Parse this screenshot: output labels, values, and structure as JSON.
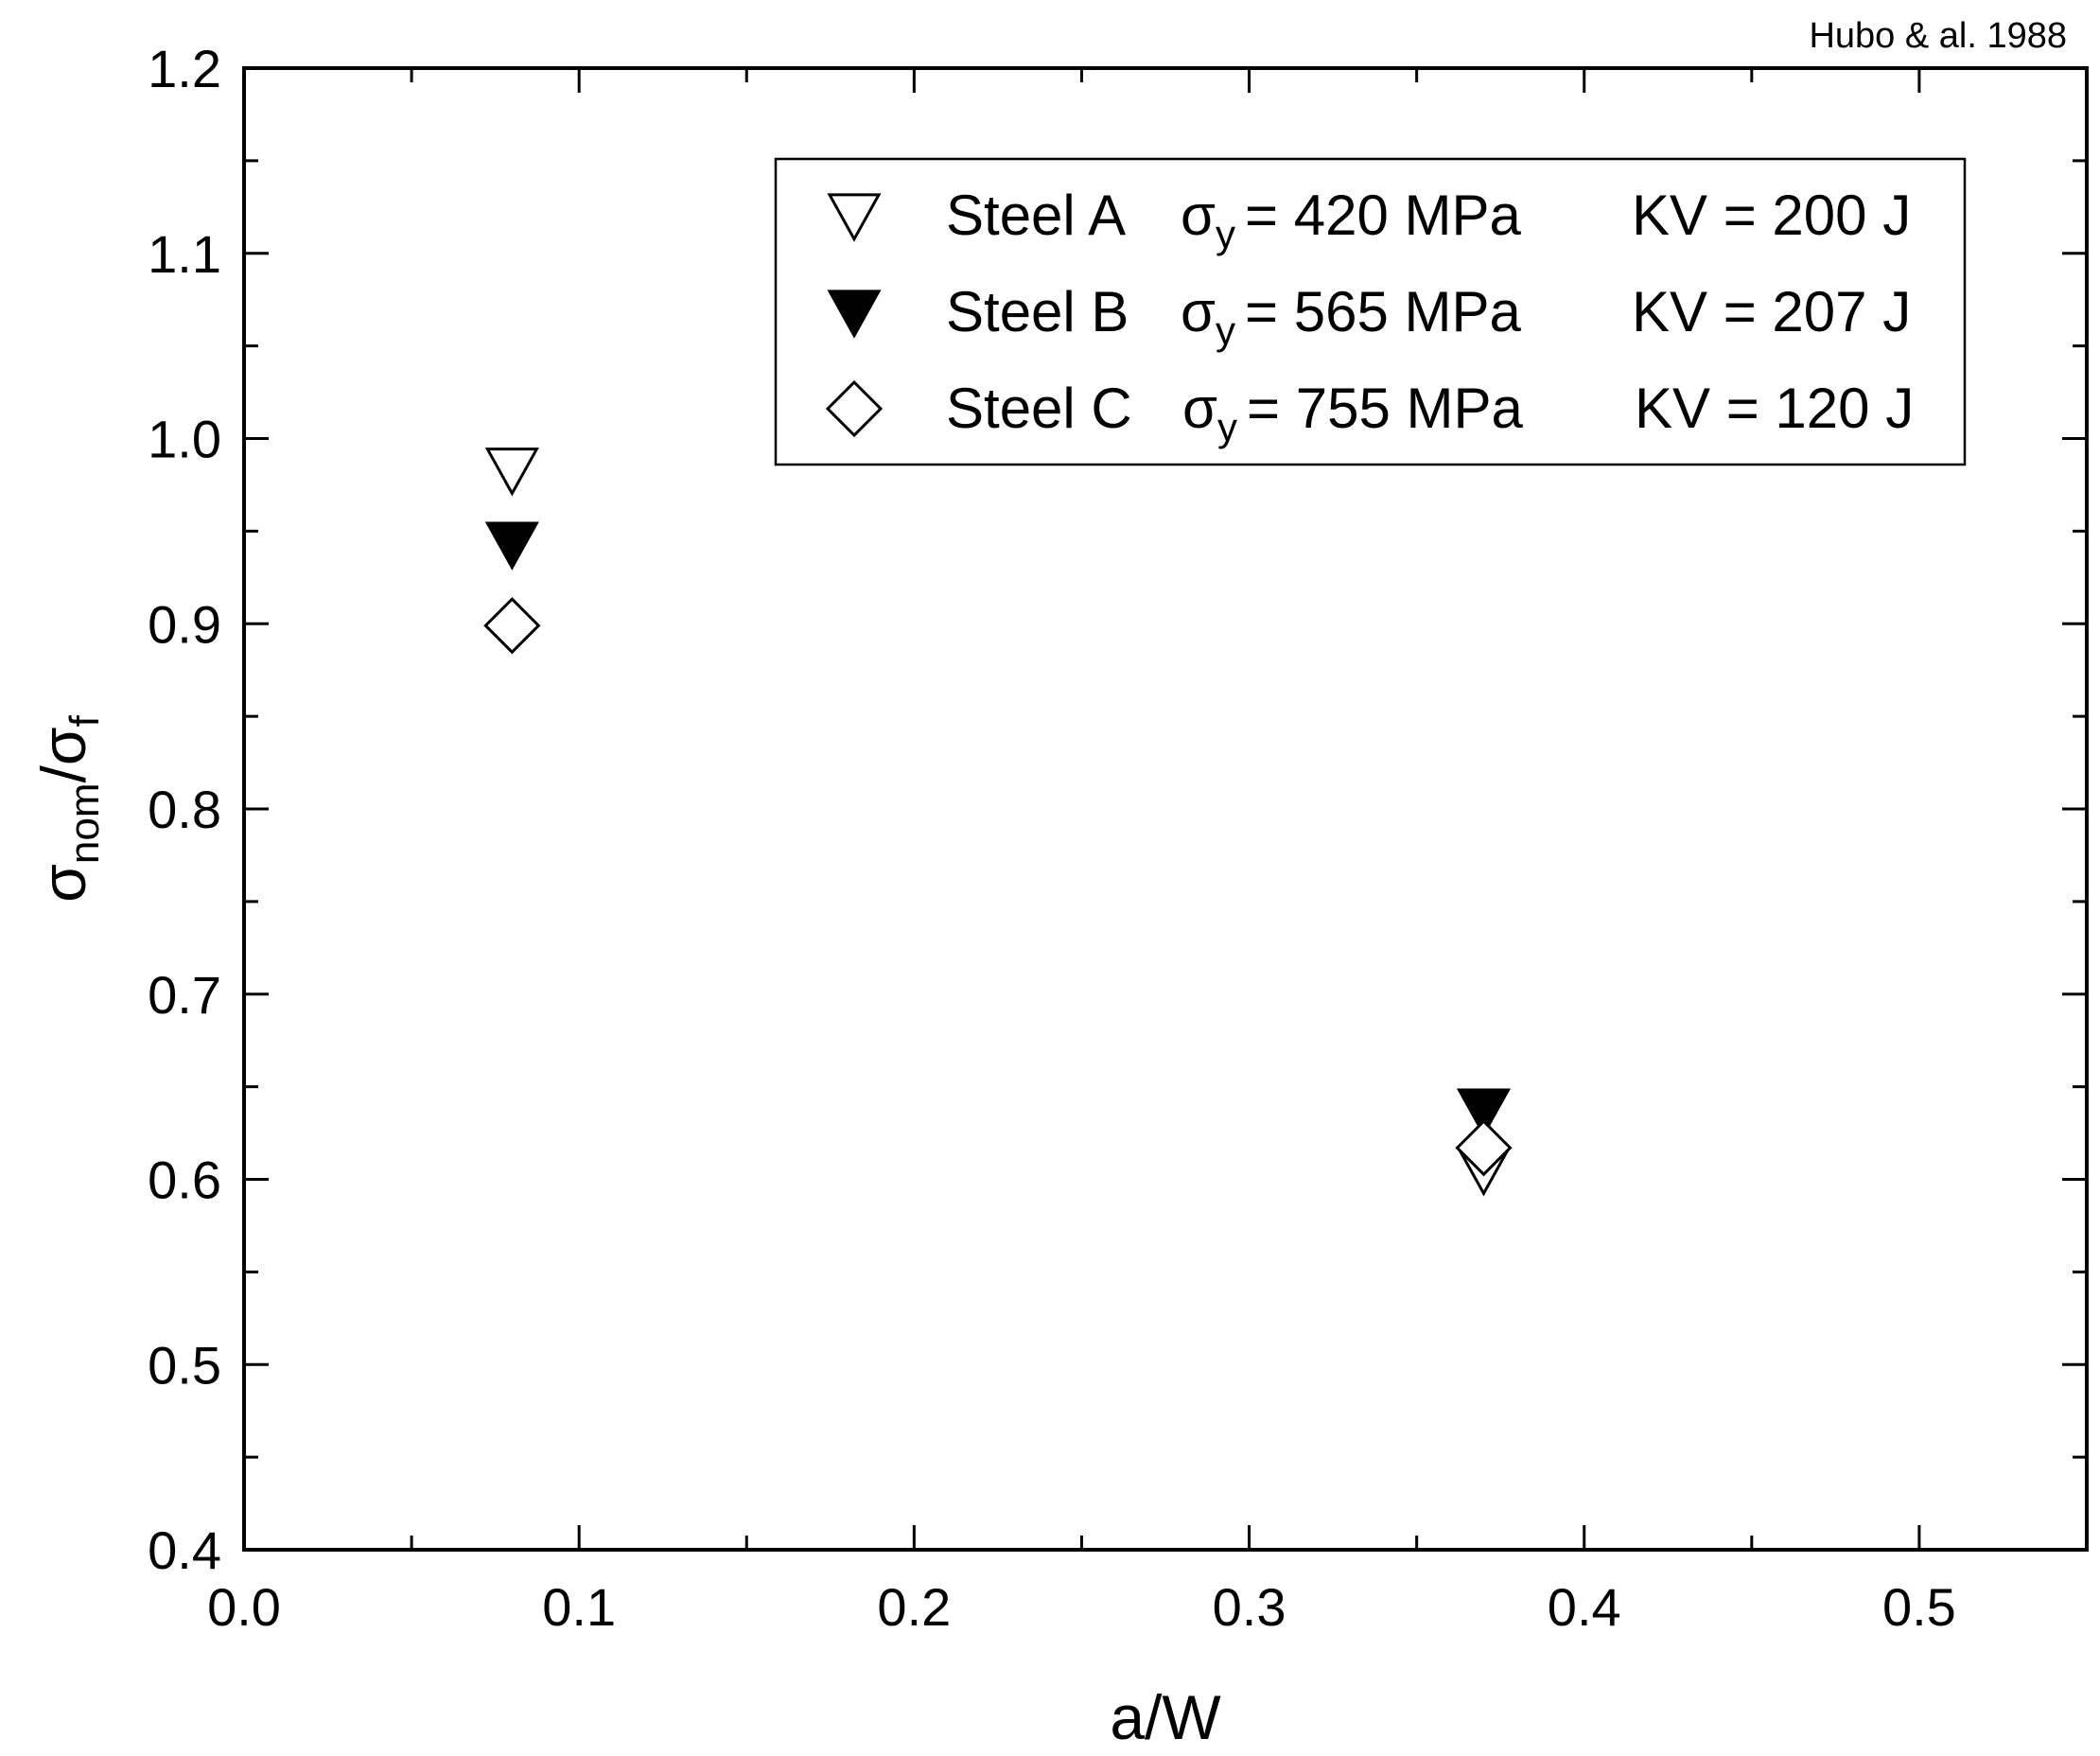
{
  "chart_data": {
    "type": "scatter",
    "source_note": "Hubo & al. 1988",
    "xlabel": "a/W",
    "ylabel": {
      "main": "σ",
      "sub1": "nom",
      "sep": "/σ",
      "sub2": "f"
    },
    "xlim": [
      0.0,
      0.55
    ],
    "ylim": [
      0.4,
      1.2
    ],
    "xticks": [
      "0.0",
      "0.1",
      "0.2",
      "0.3",
      "0.4",
      "0.5"
    ],
    "yticks": [
      "0.4",
      "0.5",
      "0.6",
      "0.7",
      "0.8",
      "0.9",
      "1.0",
      "1.1",
      "1.2"
    ],
    "grid": false,
    "legend_position": "top-right",
    "series": [
      {
        "name": "Steel A",
        "marker": "triangle-down-open",
        "sigma_symbol": "σ",
        "sigma_sub": "y",
        "yield_text": "= 420 MPa",
        "kv_text": "KV = 200 J",
        "points": [
          {
            "x": 0.08,
            "y": 0.983
          },
          {
            "x": 0.37,
            "y": 0.605
          }
        ]
      },
      {
        "name": "Steel B",
        "marker": "triangle-down-filled",
        "sigma_symbol": "σ",
        "sigma_sub": "y",
        "yield_text": "= 565 MPa",
        "kv_text": "KV = 207 J",
        "points": [
          {
            "x": 0.08,
            "y": 0.943
          },
          {
            "x": 0.37,
            "y": 0.637
          }
        ]
      },
      {
        "name": "Steel C",
        "marker": "diamond-open",
        "sigma_symbol": "σ",
        "sigma_sub": "y",
        "yield_text": "= 755 MPa",
        "kv_text": "KV = 120 J",
        "points": [
          {
            "x": 0.08,
            "y": 0.899
          },
          {
            "x": 0.37,
            "y": 0.617
          }
        ]
      }
    ]
  }
}
